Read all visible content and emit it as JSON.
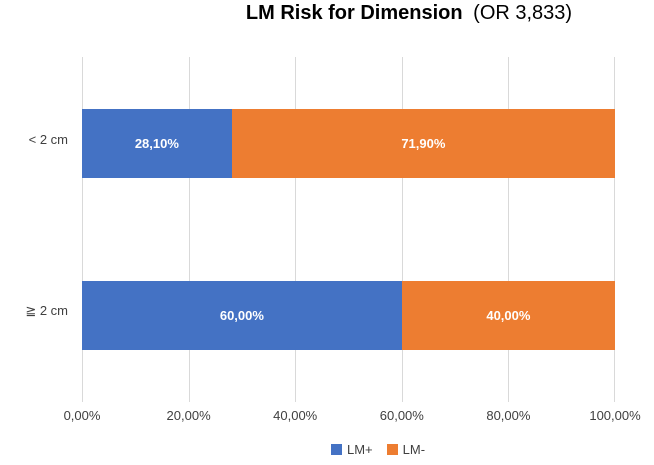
{
  "title": {
    "main": "LM Risk for Dimension",
    "suffix": "(OR 3,833)"
  },
  "colors": {
    "lm_plus": "#4472C4",
    "lm_minus": "#ED7D31",
    "gridline": "#D9D9D9",
    "data_label_text": "#FFFFFF",
    "axis_text": "#404040",
    "title_text": "#000000",
    "background": "#FFFFFF"
  },
  "x_axis": {
    "ticks": [
      "0,00%",
      "20,00%",
      "40,00%",
      "60,00%",
      "80,00%",
      "100,00%"
    ],
    "min": 0,
    "max": 100
  },
  "legend": [
    {
      "name": "LM+",
      "color": "#4472C4"
    },
    {
      "name": "LM-",
      "color": "#ED7D31"
    }
  ],
  "chart_data": {
    "type": "bar",
    "orientation": "horizontal",
    "stacked": true,
    "title": "LM Risk for Dimension (OR 3,833)",
    "categories": [
      "< 2 cm",
      "≧ 2 cm"
    ],
    "series": [
      {
        "name": "LM+",
        "color": "#4472C4",
        "values": [
          28.1,
          60.0
        ],
        "labels": [
          "28,10%",
          "60,00%"
        ]
      },
      {
        "name": "LM-",
        "color": "#ED7D31",
        "values": [
          71.9,
          40.0
        ],
        "labels": [
          "71,90%",
          "40,00%"
        ]
      }
    ],
    "xlim": [
      0,
      100
    ],
    "x_tick_labels": [
      "0,00%",
      "20,00%",
      "40,00%",
      "60,00%",
      "80,00%",
      "100,00%"
    ],
    "grid": "vertical",
    "legend_position": "bottom"
  }
}
